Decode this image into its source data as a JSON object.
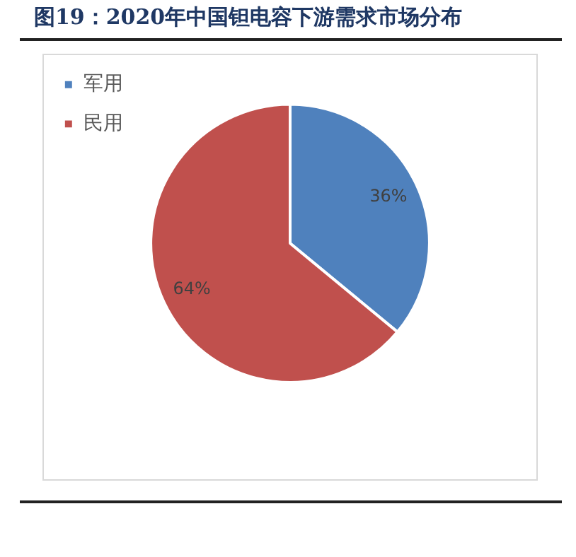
{
  "chart_data": {
    "type": "pie",
    "title": "图19：2020年中国钽电容下游需求市场分布",
    "categories": [
      "军用",
      "民用"
    ],
    "values": [
      36,
      64
    ],
    "colors": [
      "#4f81bd",
      "#c0504d"
    ],
    "value_labels": [
      "36%",
      "64%"
    ],
    "legend": "top left"
  }
}
